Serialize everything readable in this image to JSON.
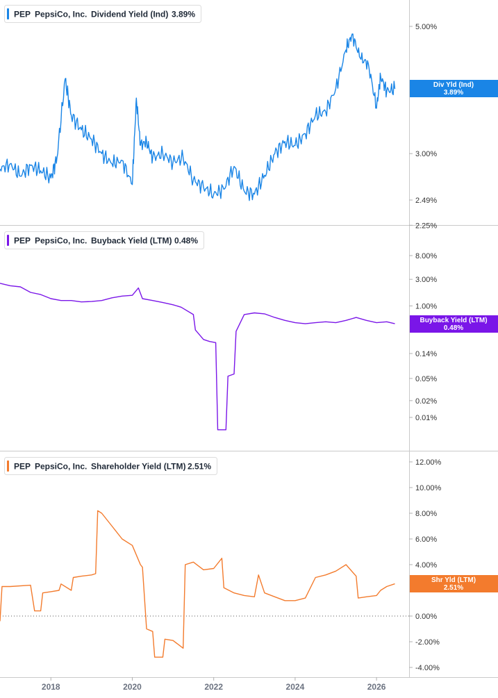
{
  "chart_data": [
    {
      "type": "line",
      "legend": {
        "ticker": "PEP",
        "company": "PepsiCo, Inc.",
        "metric": "Dividend Yield (Ind)",
        "value": "3.89%"
      },
      "color": "#1a85e6",
      "scale": "log",
      "y_ticks": [
        "5.00%",
        "3.00%",
        "2.49%",
        "2.25%"
      ],
      "y_tick_values": [
        5.0,
        3.0,
        2.49,
        2.25
      ],
      "ylim": [
        2.25,
        6.0
      ],
      "badge": {
        "label": "Div Yld (Ind)",
        "value": "3.89%"
      },
      "series": [
        {
          "name": "Dividend Yield (Ind)",
          "x": [
            2016.75,
            2017.0,
            2017.25,
            2017.5,
            2017.75,
            2018.0,
            2018.15,
            2018.35,
            2018.5,
            2018.75,
            2019.0,
            2019.25,
            2019.5,
            2019.75,
            2020.0,
            2020.1,
            2020.2,
            2020.35,
            2020.5,
            2020.75,
            2021.0,
            2021.25,
            2021.5,
            2021.75,
            2022.0,
            2022.25,
            2022.5,
            2022.75,
            2023.0,
            2023.25,
            2023.5,
            2023.75,
            2024.0,
            2024.25,
            2024.5,
            2024.75,
            2025.0,
            2025.25,
            2025.4,
            2025.6,
            2025.8,
            2026.0,
            2026.1,
            2026.25,
            2026.45
          ],
          "y": [
            2.82,
            2.88,
            2.74,
            2.86,
            2.8,
            2.72,
            2.95,
            4.05,
            3.5,
            3.3,
            3.18,
            3.0,
            2.88,
            2.92,
            2.65,
            3.75,
            3.1,
            3.15,
            2.95,
            3.0,
            2.9,
            2.95,
            2.7,
            2.62,
            2.55,
            2.6,
            2.85,
            2.58,
            2.55,
            2.75,
            3.0,
            3.15,
            3.1,
            3.25,
            3.5,
            3.55,
            3.9,
            4.55,
            4.85,
            4.4,
            4.3,
            3.6,
            4.1,
            3.85,
            3.89
          ]
        }
      ]
    },
    {
      "type": "line",
      "legend": {
        "ticker": "PEP",
        "company": "PepsiCo, Inc.",
        "metric": "Buyback Yield (LTM)",
        "value": "0.48%"
      },
      "color": "#7a16e8",
      "scale": "log",
      "y_ticks": [
        "8.00%",
        "3.00%",
        "1.00%",
        "0.14%",
        "0.05%",
        "0.02%",
        "0.01%"
      ],
      "y_tick_values": [
        8.0,
        3.0,
        1.0,
        0.14,
        0.05,
        0.02,
        0.01
      ],
      "ylim": [
        0.005,
        20.0
      ],
      "badge": {
        "label": "Buyback Yield (LTM)",
        "value": "0.48%"
      },
      "series": [
        {
          "name": "Buyback Yield (LTM)",
          "x": [
            2016.75,
            2017.0,
            2017.25,
            2017.5,
            2017.75,
            2018.0,
            2018.25,
            2018.5,
            2018.75,
            2019.0,
            2019.25,
            2019.5,
            2019.75,
            2020.0,
            2020.15,
            2020.25,
            2020.5,
            2020.75,
            2021.0,
            2021.2,
            2021.5,
            2021.55,
            2021.75,
            2021.9,
            2022.05,
            2022.1,
            2022.15,
            2022.3,
            2022.35,
            2022.5,
            2022.55,
            2022.75,
            2023.0,
            2023.25,
            2023.5,
            2023.75,
            2024.0,
            2024.25,
            2024.5,
            2024.75,
            2025.0,
            2025.25,
            2025.5,
            2025.75,
            2026.0,
            2026.25,
            2026.45
          ],
          "y": [
            2.55,
            2.3,
            2.2,
            1.75,
            1.6,
            1.35,
            1.25,
            1.25,
            1.18,
            1.2,
            1.25,
            1.4,
            1.5,
            1.55,
            2.1,
            1.35,
            1.25,
            1.15,
            1.05,
            0.95,
            0.7,
            0.37,
            0.25,
            0.23,
            0.22,
            0.006,
            0.006,
            0.006,
            0.055,
            0.06,
            0.35,
            0.7,
            0.75,
            0.72,
            0.62,
            0.55,
            0.5,
            0.48,
            0.5,
            0.52,
            0.5,
            0.55,
            0.62,
            0.55,
            0.5,
            0.52,
            0.48
          ]
        }
      ]
    },
    {
      "type": "line",
      "legend": {
        "ticker": "PEP",
        "company": "PepsiCo, Inc.",
        "metric": "Shareholder Yield (LTM)",
        "value": "2.51%"
      },
      "color": "#f37b2d",
      "scale": "linear",
      "y_ticks": [
        "12.00%",
        "10.00%",
        "8.00%",
        "6.00%",
        "4.00%",
        "0.00%",
        "-2.00%",
        "-4.00%"
      ],
      "y_tick_values": [
        12,
        10,
        8,
        6,
        4,
        0,
        -2,
        -4
      ],
      "ylim": [
        -4.5,
        12.5
      ],
      "baseline": 0,
      "badge": {
        "label": "Shr Yld (LTM)",
        "value": "2.51%"
      },
      "series": [
        {
          "name": "Shareholder Yield (LTM)",
          "x": [
            2016.75,
            2016.8,
            2017.0,
            2017.5,
            2017.6,
            2017.75,
            2017.8,
            2018.0,
            2018.2,
            2018.25,
            2018.5,
            2018.55,
            2018.75,
            2019.0,
            2019.1,
            2019.15,
            2019.25,
            2019.5,
            2019.75,
            2020.0,
            2020.2,
            2020.25,
            2020.35,
            2020.5,
            2020.55,
            2020.75,
            2020.8,
            2021.0,
            2021.25,
            2021.3,
            2021.5,
            2021.75,
            2022.0,
            2022.2,
            2022.25,
            2022.5,
            2022.75,
            2023.0,
            2023.1,
            2023.25,
            2023.5,
            2023.75,
            2024.0,
            2024.25,
            2024.5,
            2024.75,
            2025.0,
            2025.25,
            2025.5,
            2025.55,
            2025.75,
            2026.0,
            2026.1,
            2026.25,
            2026.45
          ],
          "y": [
            -0.4,
            2.3,
            2.3,
            2.4,
            0.4,
            0.4,
            1.8,
            1.9,
            2.0,
            2.5,
            2.0,
            3.0,
            3.1,
            3.2,
            3.3,
            8.2,
            8.0,
            7.0,
            6.0,
            5.5,
            4.0,
            3.8,
            -1.0,
            -1.2,
            -3.2,
            -3.2,
            -1.8,
            -1.9,
            -2.5,
            4.0,
            4.2,
            3.6,
            3.7,
            4.5,
            2.2,
            1.8,
            1.6,
            1.5,
            3.2,
            1.8,
            1.5,
            1.2,
            1.2,
            1.4,
            3.0,
            3.2,
            3.5,
            4.0,
            3.1,
            1.4,
            1.5,
            1.6,
            2.0,
            2.3,
            2.51
          ]
        }
      ]
    }
  ],
  "x_axis": {
    "ticks": [
      "2018",
      "2020",
      "2022",
      "2024",
      "2026"
    ],
    "tick_values": [
      2018,
      2020,
      2022,
      2024,
      2026
    ],
    "xlim": [
      2016.75,
      2026.8
    ]
  }
}
